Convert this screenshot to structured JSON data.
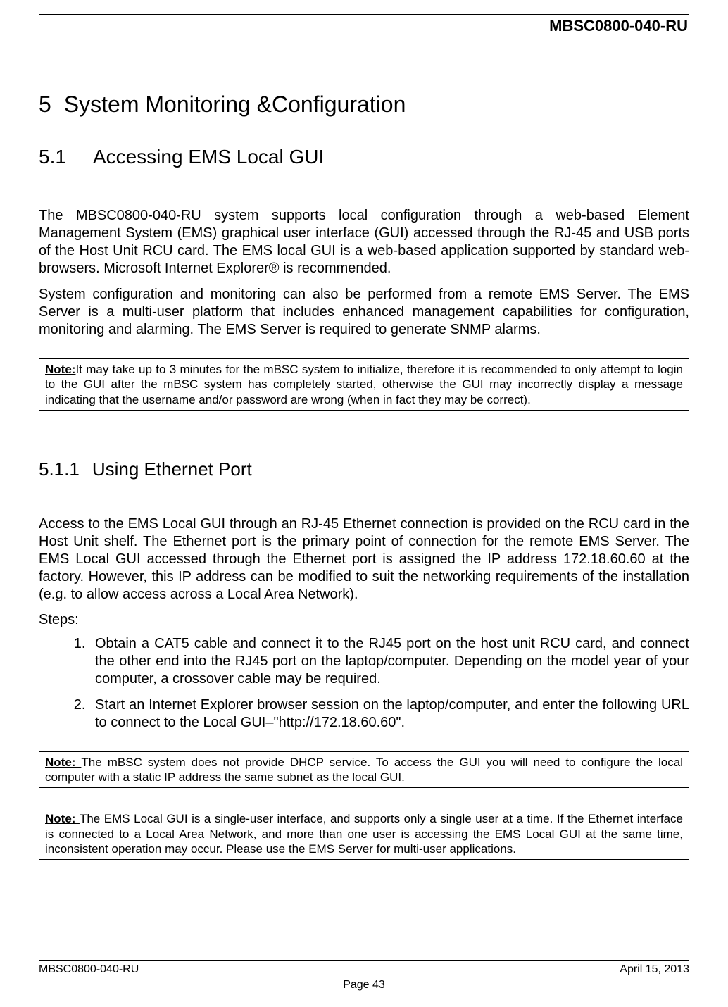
{
  "header": {
    "doc_id": "MBSC0800-040-RU"
  },
  "h1": {
    "num": "5",
    "title": "System Monitoring &Configuration"
  },
  "h2": {
    "num": "5.1",
    "title": "Accessing EMS Local GUI"
  },
  "para1": "The MBSC0800-040-RU system supports local configuration through a web-based Element Management System (EMS) graphical user interface (GUI) accessed through the RJ-45 and USB ports of the Host Unit RCU card. The EMS local GUI is a web-based application supported by standard web-browsers. Microsoft Internet Explorer® is recommended.",
  "para2": "System configuration and monitoring can also be performed from a remote EMS Server. The EMS Server is a multi-user platform that includes enhanced management capabilities for configuration, monitoring and alarming. The EMS Server is required to generate SNMP alarms.",
  "note1": {
    "label": "Note:",
    "text": "It may take up to 3 minutes for the mBSC system to initialize, therefore it is recommended to only attempt to login to the GUI after the mBSC system has completely started, otherwise the GUI may incorrectly display a message indicating that the username and/or password are wrong (when in fact they may be correct)."
  },
  "h3": {
    "num": "5.1.1",
    "title": "Using Ethernet Port"
  },
  "para3": "Access to the EMS Local GUI through an RJ-45 Ethernet connection is provided on the RCU card in the Host Unit shelf. The Ethernet port is the primary point of connection for the remote EMS Server. The EMS Local GUI accessed through the Ethernet port is assigned the IP address 172.18.60.60 at the factory. However, this IP address can be modified to suit the networking requirements of the installation (e.g. to allow access across a Local Area Network).",
  "steps_label": "Steps:",
  "steps": [
    "Obtain a CAT5 cable and connect it to the RJ45 port on the host unit RCU card, and connect the other end into the RJ45 port on the laptop/computer. Depending on the model year of your computer, a crossover cable may be required.",
    "Start an Internet Explorer browser session on the laptop/computer, and enter the following URL to connect to the Local GUI–\"http://172.18.60.60\"."
  ],
  "note2": {
    "label": "Note: ",
    "text": "The mBSC system does not provide DHCP service. To access the GUI you will need to configure the local computer with a static IP address the same subnet as the local GUI."
  },
  "note3": {
    "label": "Note: ",
    "text": "The EMS Local GUI is a single-user interface, and supports only a single user at a time. If the Ethernet interface is connected to a Local Area Network, and more than one user is accessing the EMS Local GUI at the same time, inconsistent operation may occur. Please use the EMS Server for multi-user applications."
  },
  "footer": {
    "left": "MBSC0800-040-RU",
    "right": "April 15, 2013",
    "page": "Page 43"
  }
}
